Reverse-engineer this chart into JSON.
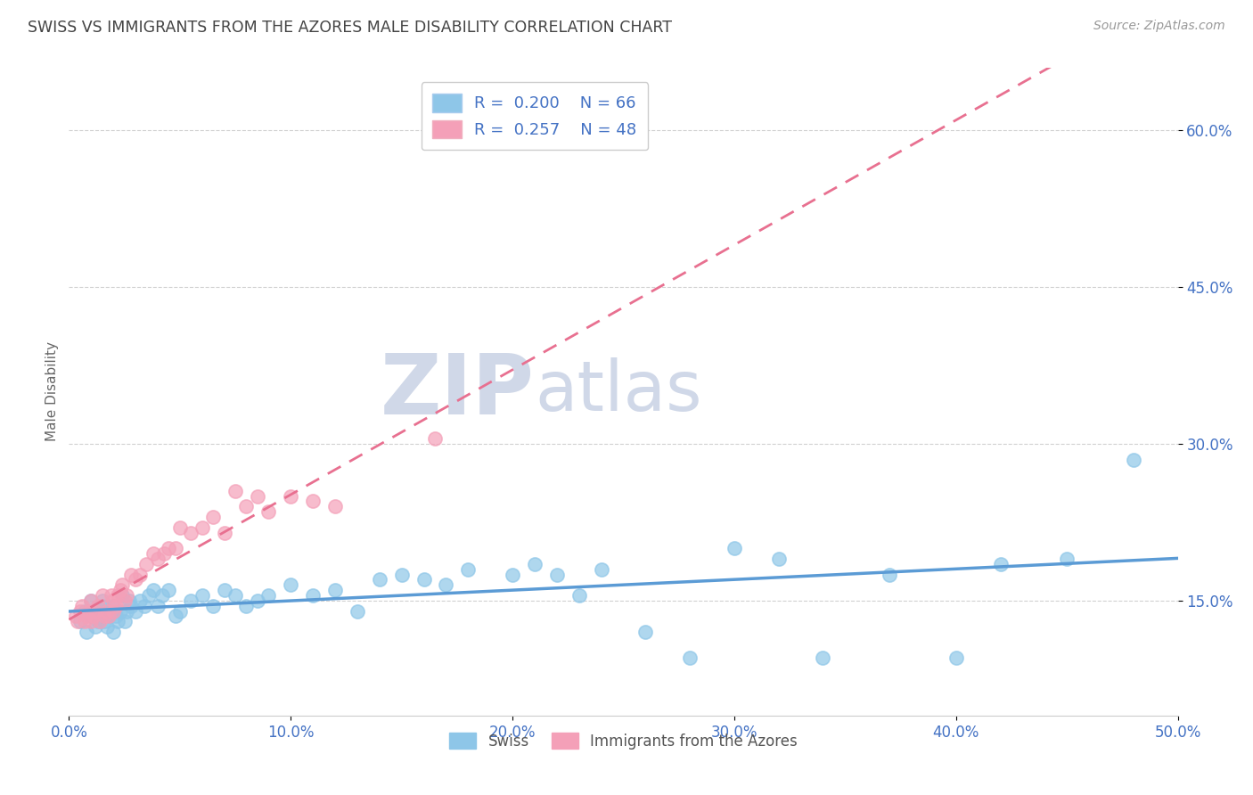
{
  "title": "SWISS VS IMMIGRANTS FROM THE AZORES MALE DISABILITY CORRELATION CHART",
  "source_text": "Source: ZipAtlas.com",
  "xlabel": "",
  "ylabel": "Male Disability",
  "xlim": [
    0.0,
    0.5
  ],
  "ylim": [
    0.04,
    0.66
  ],
  "ytick_labels": [
    "15.0%",
    "30.0%",
    "45.0%",
    "60.0%"
  ],
  "ytick_values": [
    0.15,
    0.3,
    0.45,
    0.6
  ],
  "xtick_labels": [
    "0.0%",
    "10.0%",
    "20.0%",
    "30.0%",
    "40.0%",
    "50.0%"
  ],
  "xtick_values": [
    0.0,
    0.1,
    0.2,
    0.3,
    0.4,
    0.5
  ],
  "swiss_color": "#8ec6e8",
  "azores_color": "#f4a0b8",
  "swiss_line_color": "#5b9bd5",
  "azores_line_color": "#e87090",
  "swiss_R": 0.2,
  "swiss_N": 66,
  "azores_R": 0.257,
  "azores_N": 48,
  "legend_label_swiss": "Swiss",
  "legend_label_azores": "Immigrants from the Azores",
  "swiss_x": [
    0.005,
    0.007,
    0.008,
    0.01,
    0.01,
    0.012,
    0.013,
    0.014,
    0.015,
    0.015,
    0.016,
    0.017,
    0.018,
    0.019,
    0.02,
    0.02,
    0.021,
    0.022,
    0.023,
    0.024,
    0.025,
    0.026,
    0.027,
    0.028,
    0.03,
    0.032,
    0.034,
    0.036,
    0.038,
    0.04,
    0.042,
    0.045,
    0.048,
    0.05,
    0.055,
    0.06,
    0.065,
    0.07,
    0.075,
    0.08,
    0.085,
    0.09,
    0.1,
    0.11,
    0.12,
    0.13,
    0.14,
    0.15,
    0.16,
    0.17,
    0.18,
    0.2,
    0.21,
    0.22,
    0.23,
    0.24,
    0.26,
    0.28,
    0.3,
    0.32,
    0.34,
    0.37,
    0.4,
    0.42,
    0.45,
    0.48
  ],
  "swiss_y": [
    0.13,
    0.14,
    0.12,
    0.135,
    0.15,
    0.125,
    0.13,
    0.14,
    0.145,
    0.15,
    0.13,
    0.125,
    0.135,
    0.14,
    0.12,
    0.145,
    0.135,
    0.13,
    0.14,
    0.155,
    0.13,
    0.14,
    0.15,
    0.145,
    0.14,
    0.15,
    0.145,
    0.155,
    0.16,
    0.145,
    0.155,
    0.16,
    0.135,
    0.14,
    0.15,
    0.155,
    0.145,
    0.16,
    0.155,
    0.145,
    0.15,
    0.155,
    0.165,
    0.155,
    0.16,
    0.14,
    0.17,
    0.175,
    0.17,
    0.165,
    0.18,
    0.175,
    0.185,
    0.175,
    0.155,
    0.18,
    0.12,
    0.095,
    0.2,
    0.19,
    0.095,
    0.175,
    0.095,
    0.185,
    0.19,
    0.285
  ],
  "azores_x": [
    0.003,
    0.004,
    0.005,
    0.006,
    0.007,
    0.008,
    0.009,
    0.01,
    0.01,
    0.011,
    0.012,
    0.013,
    0.014,
    0.015,
    0.016,
    0.017,
    0.018,
    0.019,
    0.02,
    0.02,
    0.021,
    0.022,
    0.023,
    0.024,
    0.025,
    0.026,
    0.028,
    0.03,
    0.032,
    0.035,
    0.038,
    0.04,
    0.043,
    0.045,
    0.048,
    0.05,
    0.055,
    0.06,
    0.065,
    0.07,
    0.075,
    0.08,
    0.085,
    0.09,
    0.1,
    0.11,
    0.12,
    0.165
  ],
  "azores_y": [
    0.135,
    0.13,
    0.14,
    0.145,
    0.13,
    0.135,
    0.14,
    0.13,
    0.15,
    0.135,
    0.14,
    0.145,
    0.13,
    0.155,
    0.135,
    0.14,
    0.135,
    0.155,
    0.14,
    0.15,
    0.145,
    0.155,
    0.16,
    0.165,
    0.15,
    0.155,
    0.175,
    0.17,
    0.175,
    0.185,
    0.195,
    0.19,
    0.195,
    0.2,
    0.2,
    0.22,
    0.215,
    0.22,
    0.23,
    0.215,
    0.255,
    0.24,
    0.25,
    0.235,
    0.25,
    0.245,
    0.24,
    0.305
  ],
  "background_color": "#ffffff",
  "grid_color": "#cccccc",
  "title_color": "#444444",
  "axis_label_color": "#666666",
  "tick_label_color": "#4472c4",
  "watermark_color": "#d0d8e8"
}
